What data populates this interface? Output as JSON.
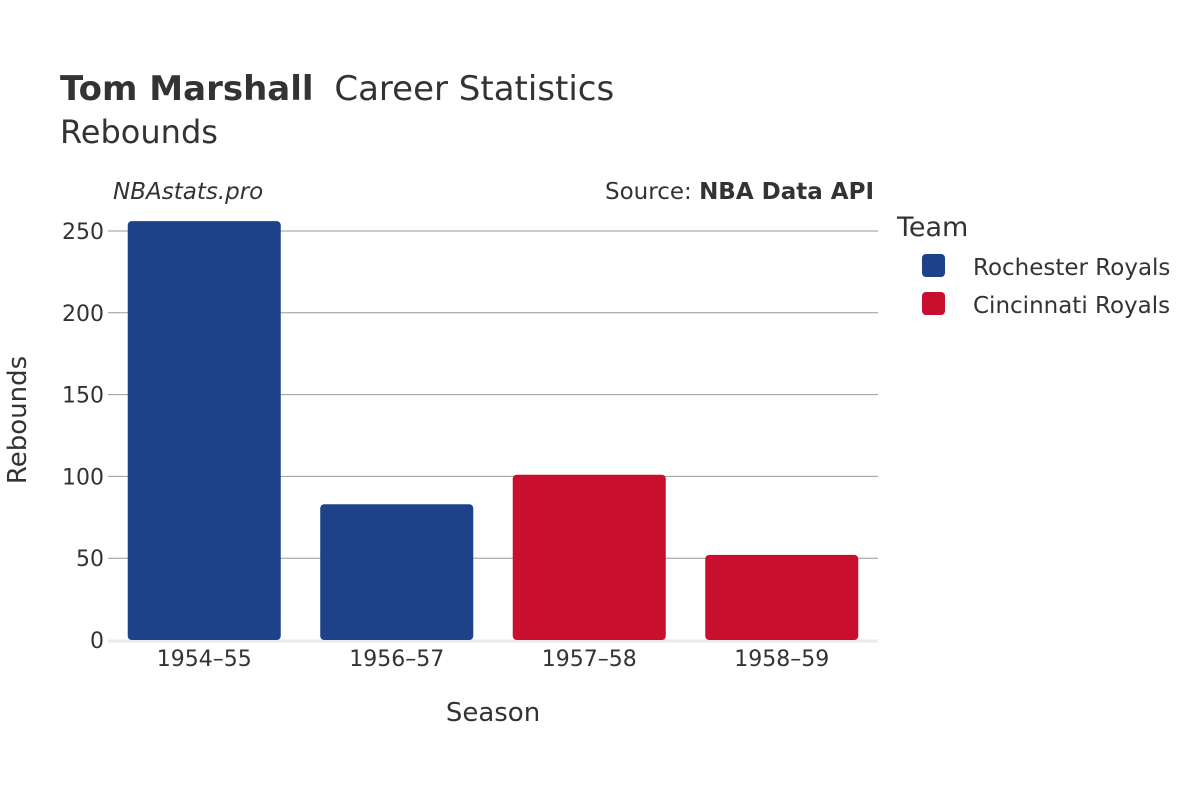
{
  "title": {
    "player": "Tom Marshall",
    "suffix": "Career Statistics",
    "subtitle": "Rebounds"
  },
  "watermark": "NBAstats.pro",
  "source": {
    "prefix": "Source: ",
    "name": "NBA Data API"
  },
  "legend": {
    "title": "Team",
    "items": [
      {
        "label": "Rochester Royals",
        "color": "#1d428a"
      },
      {
        "label": "Cincinnati Royals",
        "color": "#c8102e"
      }
    ]
  },
  "chart_data": {
    "type": "bar",
    "title": "Tom Marshall Career Statistics",
    "subtitle": "Rebounds",
    "xlabel": "Season",
    "ylabel": "Rebounds",
    "categories": [
      "1954–55",
      "1956–57",
      "1957–58",
      "1958–59"
    ],
    "values": [
      256,
      83,
      101,
      52
    ],
    "teams": [
      "Rochester Royals",
      "Rochester Royals",
      "Cincinnati Royals",
      "Cincinnati Royals"
    ],
    "ylim": [
      0,
      260
    ],
    "yticks": [
      0,
      50,
      100,
      150,
      200,
      250
    ],
    "grid": true,
    "legend_position": "right"
  }
}
